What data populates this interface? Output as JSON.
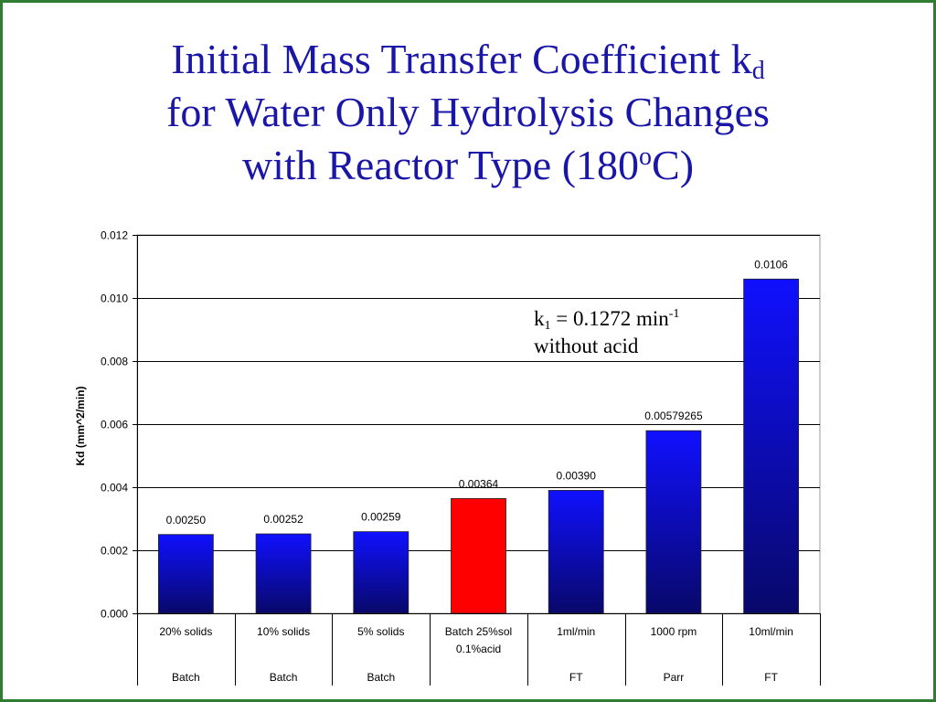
{
  "slide": {
    "title_line1_pre": "Initial Mass Transfer Coefficient k",
    "title_line1_sub": "d",
    "title_line2": "for Water Only Hydrolysis Changes",
    "title_line3_pre": "with Reactor Type (180",
    "title_line3_sup": "o",
    "title_line3_post": "C)",
    "frame_color": "#2e7d32",
    "title_color": "#1a16a8"
  },
  "annotation": {
    "k_symbol": "k",
    "k_sub": "1",
    "k_value": " = 0.1272 min",
    "k_sup": "-1",
    "line2": "without acid"
  },
  "chart_data": {
    "type": "bar",
    "ylabel": "Kd (mm^2/min)",
    "ylim": [
      0,
      0.012
    ],
    "yticks": [
      "0.000",
      "0.002",
      "0.004",
      "0.006",
      "0.008",
      "0.010",
      "0.012"
    ],
    "grid": true,
    "categories": [
      {
        "label1": "20% solids",
        "label2": "",
        "group": "Batch"
      },
      {
        "label1": "10% solids",
        "label2": "",
        "group": "Batch"
      },
      {
        "label1": "5% solids",
        "label2": "",
        "group": "Batch"
      },
      {
        "label1": "Batch 25%sol",
        "label2": "0.1%acid",
        "group": ""
      },
      {
        "label1": "1ml/min",
        "label2": "",
        "group": "FT"
      },
      {
        "label1": "1000 rpm",
        "label2": "",
        "group": "Parr"
      },
      {
        "label1": "10ml/min",
        "label2": "",
        "group": "FT"
      }
    ],
    "values": [
      0.0025,
      0.00252,
      0.00259,
      0.00364,
      0.0039,
      0.00579265,
      0.0106
    ],
    "data_labels": [
      "0.00250",
      "0.00252",
      "0.00259",
      "0.00364",
      "0.00390",
      "0.00579265",
      "0.0106"
    ],
    "bar_colors": [
      "blue",
      "blue",
      "blue",
      "red",
      "blue",
      "blue",
      "blue"
    ],
    "colors": {
      "blue_top": "#1010ff",
      "blue_bottom": "#08086a",
      "red": "#ff0000"
    }
  }
}
